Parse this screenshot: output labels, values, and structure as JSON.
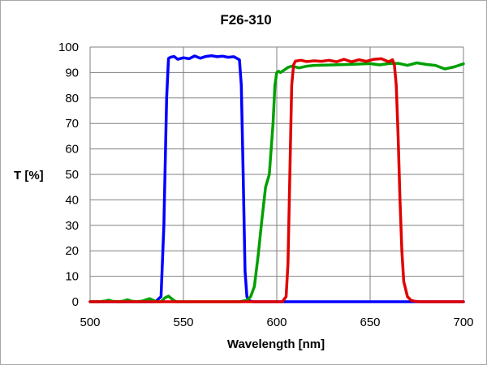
{
  "chart_data": {
    "type": "line",
    "title": "F26-310",
    "xlabel": "Wavelength [nm]",
    "ylabel": "T [%]",
    "xlim": [
      500,
      700
    ],
    "ylim": [
      0,
      100
    ],
    "xticks": [
      500,
      550,
      600,
      650,
      700
    ],
    "yticks": [
      0,
      10,
      20,
      30,
      40,
      50,
      60,
      70,
      80,
      90,
      100
    ],
    "grid": true,
    "legend": "none",
    "series": [
      {
        "color": "#0000ff",
        "x": [
          500,
          535,
          538,
          539.5,
          541,
          542,
          543,
          545,
          547,
          550,
          553,
          556,
          559,
          562,
          565,
          568,
          571,
          574,
          577,
          580,
          581,
          582,
          583,
          584,
          585,
          587,
          600,
          700
        ],
        "y": [
          0,
          0,
          2,
          30,
          80,
          95.5,
          96,
          96.3,
          95.2,
          95.8,
          95.4,
          96.5,
          95.6,
          96.3,
          96.6,
          96.2,
          96.4,
          96,
          96.2,
          95,
          85,
          50,
          12,
          2,
          0.5,
          0,
          0,
          0
        ]
      },
      {
        "color": "#00a000",
        "x": [
          500,
          505,
          508,
          510,
          512,
          515,
          518,
          520,
          522,
          525,
          528,
          530,
          532,
          534,
          536,
          538,
          540,
          542,
          544,
          546,
          560,
          580,
          584,
          586,
          588,
          590,
          592,
          594,
          596,
          598,
          599,
          600,
          601,
          602,
          604,
          606,
          608,
          612,
          616,
          620,
          630,
          640,
          650,
          655,
          660,
          665,
          670,
          675,
          680,
          685,
          690,
          695,
          700
        ],
        "y": [
          0,
          0,
          0.3,
          0.6,
          0.2,
          0,
          0.3,
          0.8,
          0.3,
          0,
          0.3,
          0.8,
          1.2,
          0.5,
          0,
          0,
          1.5,
          2.2,
          1,
          0,
          0,
          0,
          0.5,
          2,
          6,
          18,
          32,
          45,
          50,
          70,
          85,
          90,
          90.5,
          90,
          91,
          92,
          92.5,
          91.8,
          92.5,
          92.8,
          93,
          93.2,
          93.5,
          93,
          93.5,
          93.6,
          92.8,
          93.8,
          93.2,
          92.8,
          91.4,
          92.2,
          93.4
        ]
      },
      {
        "color": "#e00000",
        "x": [
          500,
          603,
          605,
          606,
          607,
          608,
          609,
          610,
          613,
          616,
          620,
          624,
          628,
          632,
          636,
          640,
          644,
          648,
          652,
          656,
          660,
          662,
          663,
          664,
          665,
          666,
          667,
          668,
          670,
          672,
          674,
          676,
          700
        ],
        "y": [
          0,
          0,
          2,
          15,
          50,
          85,
          93,
          94.5,
          94.8,
          94.3,
          94.6,
          94.4,
          94.8,
          94.2,
          95.2,
          94.2,
          95,
          94.4,
          95.2,
          95.4,
          94.2,
          95,
          93,
          85,
          65,
          40,
          20,
          8,
          2,
          0.5,
          0.2,
          0,
          0
        ]
      }
    ]
  }
}
